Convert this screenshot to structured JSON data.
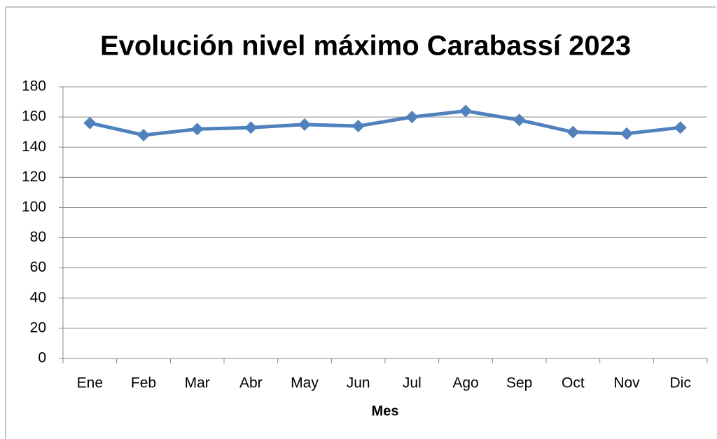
{
  "chart_data": {
    "type": "line",
    "title": "Evolución nivel máximo Carabassí 2023",
    "xlabel": "Mes",
    "categories": [
      "Ene",
      "Feb",
      "Mar",
      "Abr",
      "May",
      "Jun",
      "Jul",
      "Ago",
      "Sep",
      "Oct",
      "Nov",
      "Dic"
    ],
    "values": [
      156,
      148,
      152,
      153,
      155,
      154,
      160,
      164,
      158,
      150,
      149,
      153
    ],
    "color": "#4f81bd",
    "ylim": [
      0,
      180
    ],
    "yticks": [
      0,
      20,
      40,
      60,
      80,
      100,
      120,
      140,
      160,
      180
    ],
    "grid": true
  }
}
